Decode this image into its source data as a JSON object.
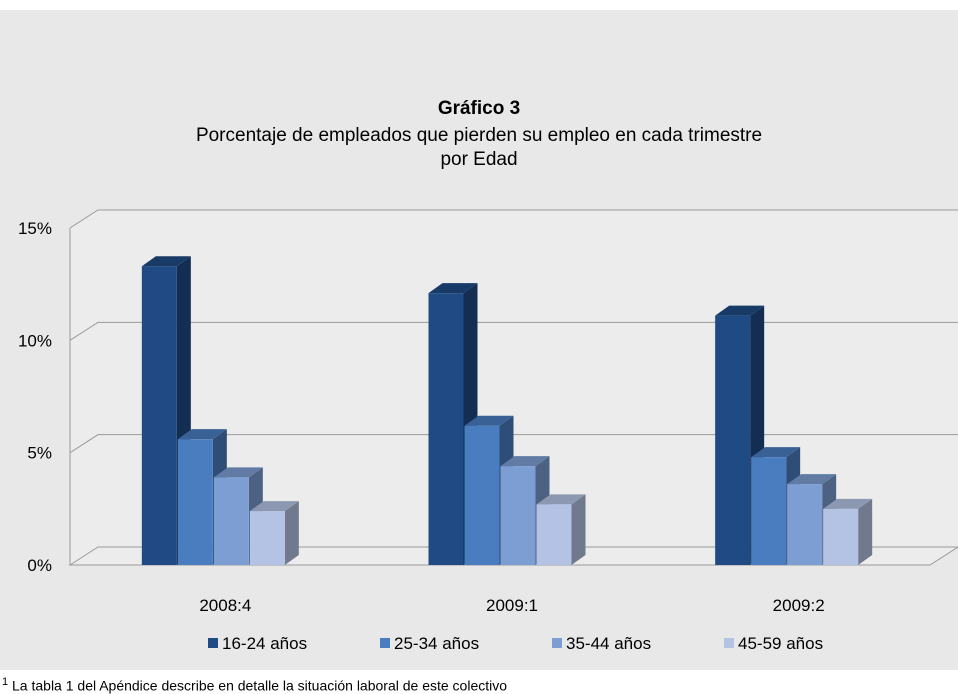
{
  "chart_data": {
    "type": "bar",
    "title": "Gráfico 3",
    "subtitle_lines": [
      "Porcentaje de empleados que pierden su empleo en cada trimestre",
      "por Edad"
    ],
    "categories": [
      "2008:4",
      "2009:1",
      "2009:2"
    ],
    "series": [
      {
        "name": "16-24 años",
        "color": "#1f4a84",
        "values": [
          13.3,
          12.1,
          11.1
        ]
      },
      {
        "name": "25-34 años",
        "color": "#4a7cc0",
        "values": [
          5.6,
          6.2,
          4.8
        ]
      },
      {
        "name": "35-44 años",
        "color": "#7c9ed3",
        "values": [
          3.9,
          4.4,
          3.6
        ]
      },
      {
        "name": "45-59 años",
        "color": "#b4c3e3",
        "values": [
          2.4,
          2.7,
          2.5
        ]
      }
    ],
    "yticks": [
      "0%",
      "5%",
      "10%",
      "15%"
    ],
    "ylim": [
      0,
      15
    ],
    "grid": true,
    "legend_position": "bottom"
  },
  "footnote": {
    "marker": "1",
    "text": "La tabla 1 del Apéndice describe en detalle la situación laboral de este colectivo"
  }
}
